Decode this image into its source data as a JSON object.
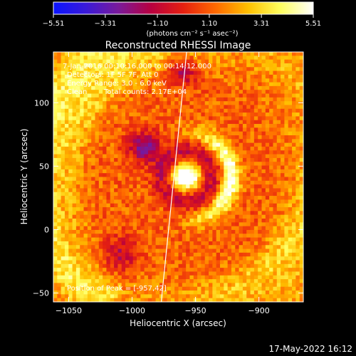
{
  "colorbar": {
    "ticks": [
      "−5.51",
      "−3.31",
      "−1.10",
      "1.10",
      "3.31",
      "5.51"
    ],
    "tick_values": [
      -5.51,
      -3.31,
      -1.1,
      1.1,
      3.31,
      5.51
    ],
    "range": [
      -5.51,
      5.51
    ],
    "stops": [
      "#0a14ff",
      "#3a1ad8",
      "#7a1a9a",
      "#b80040",
      "#e62010",
      "#ff6a00",
      "#ffc000",
      "#ffff60",
      "#ffffff"
    ]
  },
  "units_text": "(photons cm⁻² s⁻¹ asec⁻²)",
  "title": "Reconstructed RHESSI Image",
  "annotations": {
    "time_range": "7-Jan-2016 00:10:16.000 to 00:14:12.000",
    "detectors": "Detectors: 1F 5F 7F, Att 0",
    "energy": "Energy Range: 3.0 - 6.0 keV",
    "clean": "Clean",
    "total_counts": "Total counts: 2.17E+04",
    "peak": "Position of Peak = [-957,42]"
  },
  "footer_date": "17-May-2022 16:12",
  "chart_data": {
    "type": "heatmap",
    "title": "Reconstructed RHESSI Image",
    "xlabel": "Heliocentric X (arcsec)",
    "ylabel": "Heliocentric Y (arcsec)",
    "xlim": [
      -1062,
      -865
    ],
    "ylim": [
      -57,
      140
    ],
    "xticks": [
      -1050,
      -1000,
      -950,
      -900
    ],
    "yticks": [
      -50,
      0,
      50,
      100
    ],
    "xtick_labels": [
      "−1050",
      "−1000",
      "−950",
      "−900"
    ],
    "ytick_labels": [
      "−50",
      "0",
      "50",
      "100"
    ],
    "peak_position": [
      -957,
      42
    ],
    "limb_line": [
      [
        -977,
        -57
      ],
      [
        -957,
        140
      ]
    ],
    "features": {
      "core_center": [
        -957,
        42
      ],
      "core_sigma": 7,
      "ring_center": [
        -957,
        42
      ],
      "ring_radius": 35,
      "ring_width": 5,
      "ring_arc_center_deg": 0,
      "ring_arc_halfwidth_deg": 105,
      "background_level": 1.2,
      "noise": 1.0
    }
  }
}
